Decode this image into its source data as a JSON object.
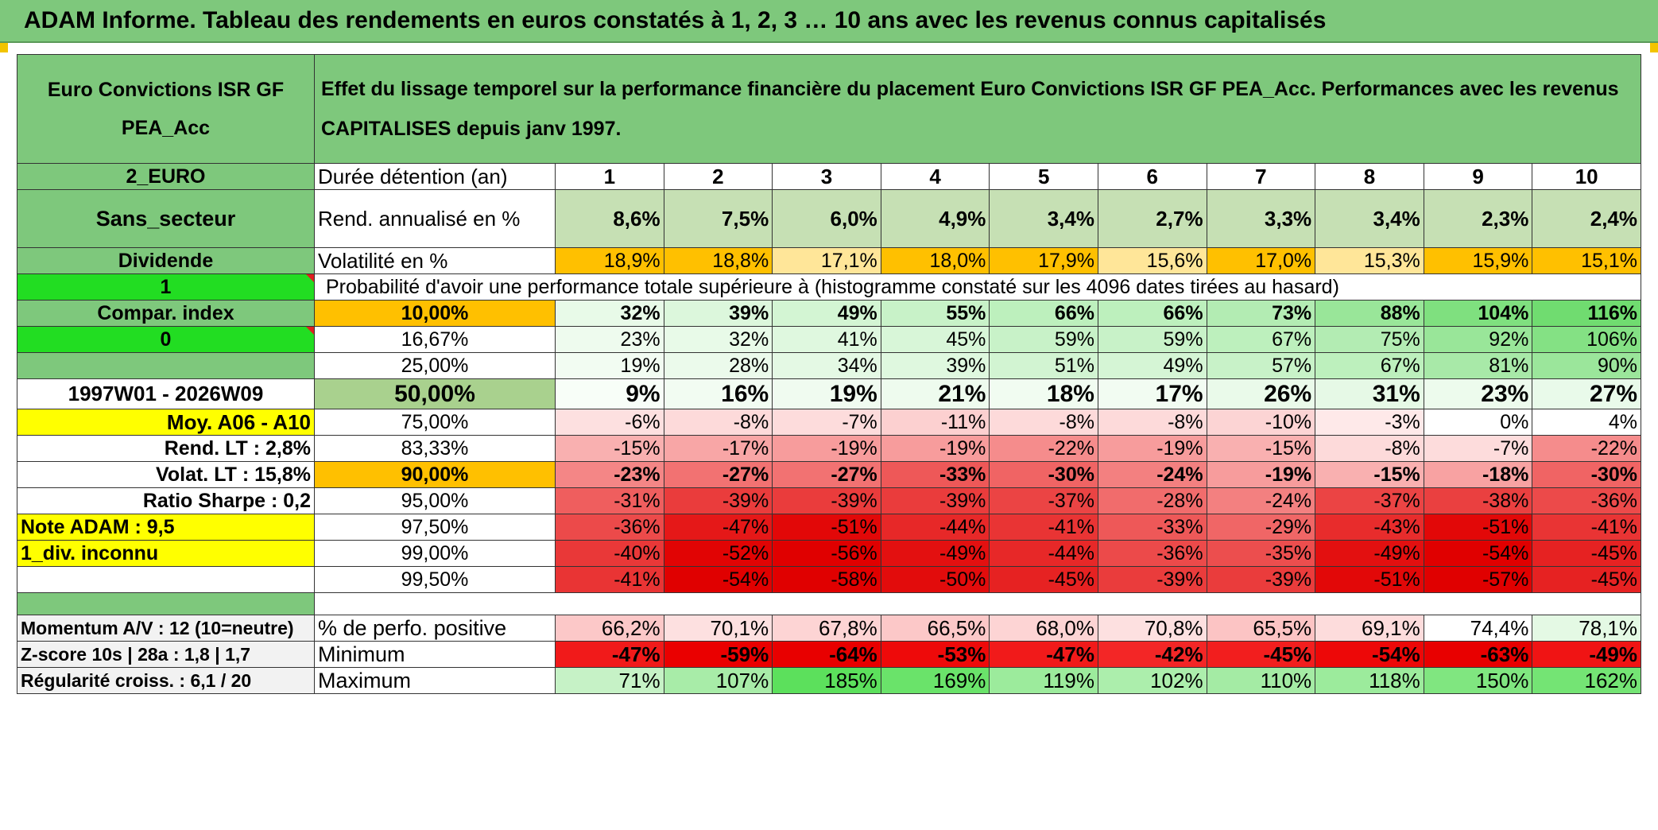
{
  "title": "ADAM Informe. Tableau des rendements en euros constatés à 1, 2, 3 … 10 ans avec les revenus connus capitalisés",
  "fund_name": "Euro Convictions ISR GF PEA_Acc",
  "description": "Effet du lissage temporel sur la performance financière du placement Euro Convictions ISR GF PEA_Acc. Performances avec les revenus CAPITALISES depuis janv 1997.",
  "left_labels": {
    "currency": "2_EURO",
    "sector": "Sans_secteur",
    "dividend": "Dividende",
    "one": "1",
    "compar_index": "Compar. index",
    "zero": "0",
    "blank": "",
    "period": "1997W01 - 2026W09",
    "moy": "Moy. A06 - A10",
    "rend_lt": "Rend. LT :   2,8%",
    "volat_lt": "Volat. LT :   15,8%",
    "ratio_sharpe": "Ratio Sharpe :    0,2",
    "note_adam": "Note ADAM : 9,5",
    "div_inconnu": "1_div. inconnu",
    "momentum": "Momentum A/V : 12 (10=neutre)",
    "zscore": "Z-score 10s | 28a : 1,8 | 1,7",
    "regularite": "Régularité croiss. : 6,1 / 20"
  },
  "row_labels": {
    "duree": "Durée détention (an)",
    "rend": "Rend. annualisé en %",
    "volat": "Volatilité en %",
    "proba": "Probabilité d'avoir une performance totale supérieure à (histogramme constaté sur les 4096 dates tirées au hasard)",
    "positive": "% de perfo. positive",
    "minimum": "Minimum",
    "maximum": "Maximum"
  },
  "years": [
    "1",
    "2",
    "3",
    "4",
    "5",
    "6",
    "7",
    "8",
    "9",
    "10"
  ],
  "rendement": [
    "8,6%",
    "7,5%",
    "6,0%",
    "4,9%",
    "3,4%",
    "2,7%",
    "3,3%",
    "3,4%",
    "2,3%",
    "2,4%"
  ],
  "volatilite": [
    "18,9%",
    "18,8%",
    "17,1%",
    "18,0%",
    "17,9%",
    "15,6%",
    "17,0%",
    "15,3%",
    "15,9%",
    "15,1%"
  ],
  "volat_colors": [
    "#ffc000",
    "#ffc000",
    "#ffe699",
    "#ffc000",
    "#ffc000",
    "#ffe699",
    "#ffc000",
    "#ffe699",
    "#ffc000",
    "#ffc000"
  ],
  "quantiles": [
    {
      "label": "10,00%",
      "bold": true,
      "bg": "#ffc000",
      "values": [
        "32%",
        "39%",
        "49%",
        "55%",
        "66%",
        "66%",
        "73%",
        "88%",
        "104%",
        "116%"
      ],
      "colors": [
        "#e8fae8",
        "#dcf7dc",
        "#d3f5d3",
        "#c8f2c8",
        "#bdf0bd",
        "#bdf0bd",
        "#b3ecb3",
        "#99e699",
        "#7fe07f",
        "#70dc70"
      ]
    },
    {
      "label": "16,67%",
      "bold": false,
      "bg": "#ffffff",
      "values": [
        "23%",
        "32%",
        "41%",
        "45%",
        "59%",
        "59%",
        "67%",
        "75%",
        "92%",
        "106%"
      ],
      "colors": [
        "#eefbee",
        "#e8fae8",
        "#dff8df",
        "#d8f6d8",
        "#c8f2c8",
        "#c8f2c8",
        "#bdf0bd",
        "#b3ecb3",
        "#99e699",
        "#84e184"
      ]
    },
    {
      "label": "25,00%",
      "bold": false,
      "bg": "#ffffff",
      "values": [
        "19%",
        "28%",
        "34%",
        "39%",
        "51%",
        "49%",
        "57%",
        "67%",
        "81%",
        "90%"
      ],
      "colors": [
        "#f2fcf2",
        "#ebfaeb",
        "#e4f9e4",
        "#dff8df",
        "#d2f4d2",
        "#d5f5d5",
        "#c8f2c8",
        "#bdf0bd",
        "#a8e9a8",
        "#9be69b"
      ]
    },
    {
      "label": "50,00%",
      "bold": true,
      "bg": "#a9d18e",
      "big": true,
      "values": [
        "9%",
        "16%",
        "19%",
        "21%",
        "18%",
        "17%",
        "26%",
        "31%",
        "23%",
        "27%"
      ],
      "colors": [
        "#f8fef8",
        "#f2fcf2",
        "#f0fbf0",
        "#eefbee",
        "#f1fcf1",
        "#f2fcf2",
        "#eafaea",
        "#e6f9e6",
        "#edfbed",
        "#e9faea"
      ]
    },
    {
      "label": "75,00%",
      "bold": false,
      "bg": "#ffffff",
      "values": [
        "-6%",
        "-8%",
        "-7%",
        "-11%",
        "-8%",
        "-8%",
        "-10%",
        "-3%",
        "0%",
        "4%"
      ],
      "colors": [
        "#fde0e0",
        "#fddada",
        "#fddcdc",
        "#fcd0d0",
        "#fddada",
        "#fddada",
        "#fcd4d4",
        "#fee9e9",
        "#ffffff",
        "#ffffff"
      ]
    },
    {
      "label": "83,33%",
      "bold": false,
      "bg": "#ffffff",
      "values": [
        "-15%",
        "-17%",
        "-19%",
        "-19%",
        "-22%",
        "-19%",
        "-15%",
        "-8%",
        "-7%",
        "-22%"
      ],
      "colors": [
        "#f9b0b0",
        "#f8a6a6",
        "#f79c9c",
        "#f79c9c",
        "#f58c8c",
        "#f79c9c",
        "#f9b0b0",
        "#fddada",
        "#fddcdc",
        "#f58c8c"
      ]
    },
    {
      "label": "90,00%",
      "bold": true,
      "bg": "#ffc000",
      "values": [
        "-23%",
        "-27%",
        "-27%",
        "-33%",
        "-30%",
        "-24%",
        "-19%",
        "-15%",
        "-18%",
        "-30%"
      ],
      "colors": [
        "#f48686",
        "#f27272",
        "#f27272",
        "#ee5858",
        "#f06464",
        "#f38080",
        "#f79c9c",
        "#f9b0b0",
        "#f8a2a2",
        "#f06464"
      ]
    },
    {
      "label": "95,00%",
      "bold": false,
      "bg": "#ffffff",
      "values": [
        "-31%",
        "-39%",
        "-39%",
        "-39%",
        "-37%",
        "-28%",
        "-24%",
        "-37%",
        "-38%",
        "-36%"
      ],
      "colors": [
        "#ef5e5e",
        "#ea3c3c",
        "#ea3c3c",
        "#ea3c3c",
        "#eb4444",
        "#f16c6c",
        "#f38080",
        "#eb4444",
        "#ea4040",
        "#ec4a4a"
      ]
    },
    {
      "label": "97,50%",
      "bold": false,
      "bg": "#ffffff",
      "values": [
        "-36%",
        "-47%",
        "-51%",
        "-44%",
        "-41%",
        "-33%",
        "-29%",
        "-43%",
        "-51%",
        "-41%"
      ],
      "colors": [
        "#ec4a4a",
        "#e51818",
        "#e20808",
        "#e72828",
        "#e93434",
        "#ee5858",
        "#f06666",
        "#e82c2c",
        "#e20808",
        "#e93434"
      ]
    },
    {
      "label": "99,00%",
      "bold": false,
      "bg": "#ffffff",
      "values": [
        "-40%",
        "-52%",
        "-56%",
        "-49%",
        "-44%",
        "-36%",
        "-35%",
        "-49%",
        "-54%",
        "-45%"
      ],
      "colors": [
        "#e93838",
        "#e10404",
        "#e00000",
        "#e31010",
        "#e72828",
        "#ec4a4a",
        "#ec4e4e",
        "#e31010",
        "#e00000",
        "#e62222"
      ]
    },
    {
      "label": "99,50%",
      "bold": false,
      "bg": "#ffffff",
      "values": [
        "-41%",
        "-54%",
        "-58%",
        "-50%",
        "-45%",
        "-39%",
        "-39%",
        "-51%",
        "-57%",
        "-45%"
      ],
      "colors": [
        "#e93434",
        "#e00000",
        "#e00000",
        "#e20c0c",
        "#e62222",
        "#ea3c3c",
        "#ea3c3c",
        "#e20808",
        "#e00000",
        "#e62222"
      ]
    }
  ],
  "positive": [
    "66,2%",
    "70,1%",
    "67,8%",
    "66,5%",
    "68,0%",
    "70,8%",
    "65,5%",
    "69,1%",
    "74,4%",
    "78,1%"
  ],
  "positive_colors": [
    "#fcc8c8",
    "#fde0e0",
    "#fdd4d4",
    "#fcc8c8",
    "#fdd4d4",
    "#fde0e0",
    "#fcc4c4",
    "#fddcdc",
    "#ffffff",
    "#e4f9e4"
  ],
  "minimum": [
    "-47%",
    "-59%",
    "-64%",
    "-53%",
    "-47%",
    "-42%",
    "-45%",
    "-54%",
    "-63%",
    "-49%"
  ],
  "minimum_colors": [
    "#f11a1a",
    "#ea0000",
    "#e80000",
    "#ee0a0a",
    "#f11a1a",
    "#f32626",
    "#f21e1e",
    "#ed0808",
    "#e80000",
    "#f01414"
  ],
  "maximum": [
    "71%",
    "107%",
    "185%",
    "169%",
    "119%",
    "102%",
    "110%",
    "118%",
    "150%",
    "162%"
  ],
  "maximum_colors": [
    "#c6f2c6",
    "#a8eca8",
    "#5ce05c",
    "#6ae36a",
    "#9ceb9c",
    "#aceeac",
    "#a4eba4",
    "#9ceb9c",
    "#80e680",
    "#74e474"
  ],
  "colors": {
    "title_bg": "#7ec87c",
    "header_green": "#7ec87c",
    "bright_green": "#22dd22",
    "yellow": "#ffff00",
    "orange": "#ffc000",
    "red_text": "#d71f1f",
    "accent_corner": "#f2c400"
  }
}
